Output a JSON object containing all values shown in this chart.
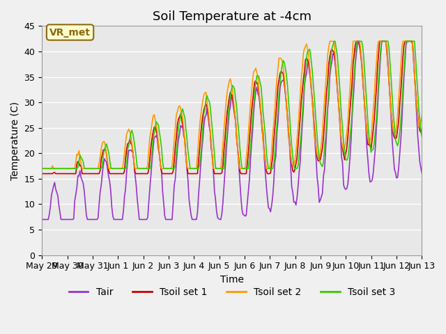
{
  "title": "Soil Temperature at -4cm",
  "xlabel": "Time",
  "ylabel": "Temperature (C)",
  "ylim": [
    0,
    45
  ],
  "yticks": [
    0,
    5,
    10,
    15,
    20,
    25,
    30,
    35,
    40,
    45
  ],
  "xtick_labels": [
    "May 29",
    "May 30",
    "May 31",
    "Jun 1",
    "Jun 2",
    "Jun 3",
    "Jun 4",
    "Jun 5",
    "Jun 6",
    "Jun 7",
    "Jun 8",
    "Jun 9",
    "Jun 10",
    "Jun 11",
    "Jun 12",
    "Jun 13"
  ],
  "annotation_text": "VR_met",
  "annotation_bg": "#ffffcc",
  "annotation_border": "#8b6914",
  "colors": {
    "Tair": "#9933cc",
    "Tsoil set 1": "#cc0000",
    "Tsoil set 2": "#ff9900",
    "Tsoil set 3": "#33cc00"
  },
  "legend_labels": [
    "Tair",
    "Tsoil set 1",
    "Tsoil set 2",
    "Tsoil set 3"
  ],
  "bg_color": "#e8e8e8",
  "grid_color": "#ffffff",
  "n_points": 360,
  "days": 15,
  "title_fontsize": 13,
  "axis_fontsize": 10,
  "tick_fontsize": 9
}
